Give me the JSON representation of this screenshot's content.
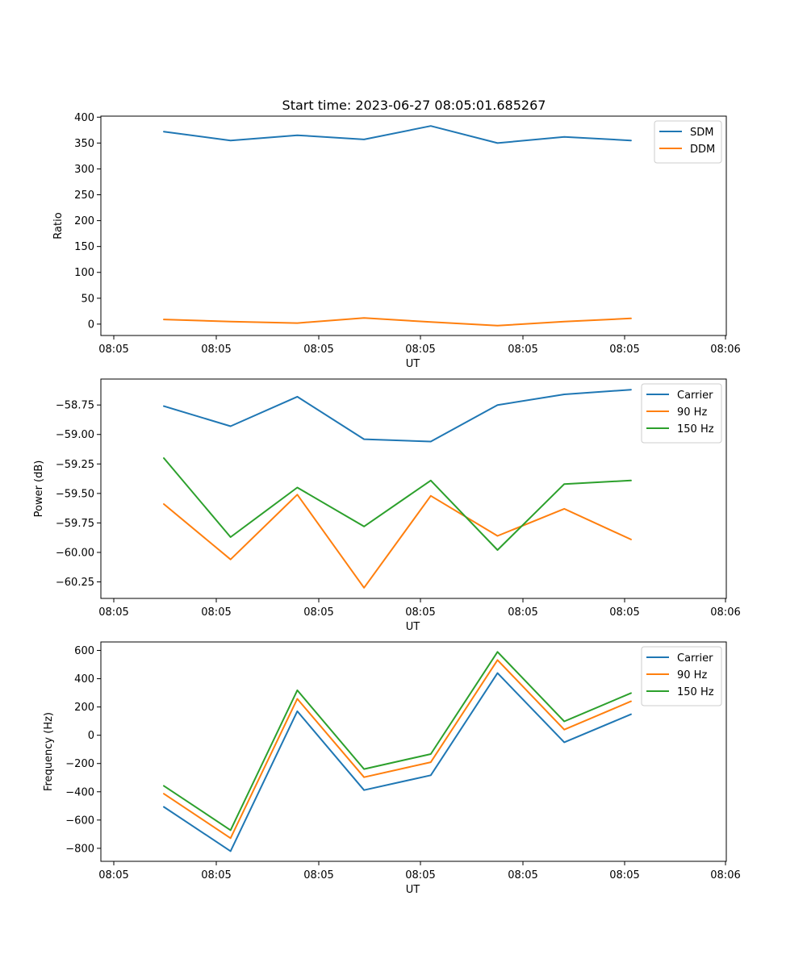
{
  "figure": {
    "title": "Start time: 2023-06-27 08:05:01.685267"
  },
  "chart_data": [
    {
      "type": "line",
      "xlabel": "UT",
      "ylabel": "Ratio",
      "x_tick_labels": [
        "08:05",
        "08:05",
        "08:05",
        "08:05",
        "08:05",
        "08:05",
        "08:06"
      ],
      "y_ticks": [
        0,
        50,
        100,
        150,
        200,
        250,
        300,
        350,
        400
      ],
      "ylim": [
        -22,
        402
      ],
      "legend": "top-right",
      "series": [
        {
          "name": "SDM",
          "color": "#1f77b4",
          "values": [
            372,
            355,
            365,
            357,
            383,
            350,
            362,
            355
          ]
        },
        {
          "name": "DDM",
          "color": "#ff7f0e",
          "values": [
            9,
            5,
            2,
            12,
            4,
            -3,
            5,
            11
          ]
        }
      ]
    },
    {
      "type": "line",
      "xlabel": "UT",
      "ylabel": "Power (dB)",
      "x_tick_labels": [
        "08:05",
        "08:05",
        "08:05",
        "08:05",
        "08:05",
        "08:05",
        "08:06"
      ],
      "y_ticks": [
        -60.25,
        -60.0,
        -59.75,
        -59.5,
        -59.25,
        -59.0,
        -58.75
      ],
      "y_tick_labels": [
        "−60.25",
        "−60.00",
        "−59.75",
        "−59.50",
        "−59.25",
        "−59.00",
        "−58.75"
      ],
      "ylim": [
        -60.39,
        -58.53
      ],
      "legend": "top-right",
      "series": [
        {
          "name": "Carrier",
          "color": "#1f77b4",
          "values": [
            -58.76,
            -58.93,
            -58.68,
            -59.04,
            -59.06,
            -58.75,
            -58.66,
            -58.62
          ]
        },
        {
          "name": "90 Hz",
          "color": "#ff7f0e",
          "values": [
            -59.59,
            -60.06,
            -59.51,
            -60.3,
            -59.52,
            -59.86,
            -59.63,
            -59.89
          ]
        },
        {
          "name": "150 Hz",
          "color": "#2ca02c",
          "values": [
            -59.2,
            -59.87,
            -59.45,
            -59.78,
            -59.39,
            -59.98,
            -59.42,
            -59.39
          ]
        }
      ]
    },
    {
      "type": "line",
      "xlabel": "UT",
      "ylabel": "Frequency (Hz)",
      "x_tick_labels": [
        "08:05",
        "08:05",
        "08:05",
        "08:05",
        "08:05",
        "08:05",
        "08:06"
      ],
      "y_ticks": [
        -800,
        -600,
        -400,
        -200,
        0,
        200,
        400,
        600
      ],
      "y_tick_labels": [
        "−800",
        "−600",
        "−400",
        "−200",
        "0",
        "200",
        "400",
        "600"
      ],
      "ylim": [
        -892,
        660
      ],
      "legend": "top-right",
      "series": [
        {
          "name": "Carrier",
          "color": "#1f77b4",
          "values": [
            -507,
            -820,
            170,
            -388,
            -283,
            440,
            -50,
            148
          ]
        },
        {
          "name": "90 Hz",
          "color": "#ff7f0e",
          "values": [
            -414,
            -728,
            258,
            -297,
            -191,
            532,
            40,
            240
          ]
        },
        {
          "name": "150 Hz",
          "color": "#2ca02c",
          "values": [
            -358,
            -672,
            318,
            -239,
            -133,
            590,
            98,
            298
          ]
        }
      ]
    }
  ]
}
